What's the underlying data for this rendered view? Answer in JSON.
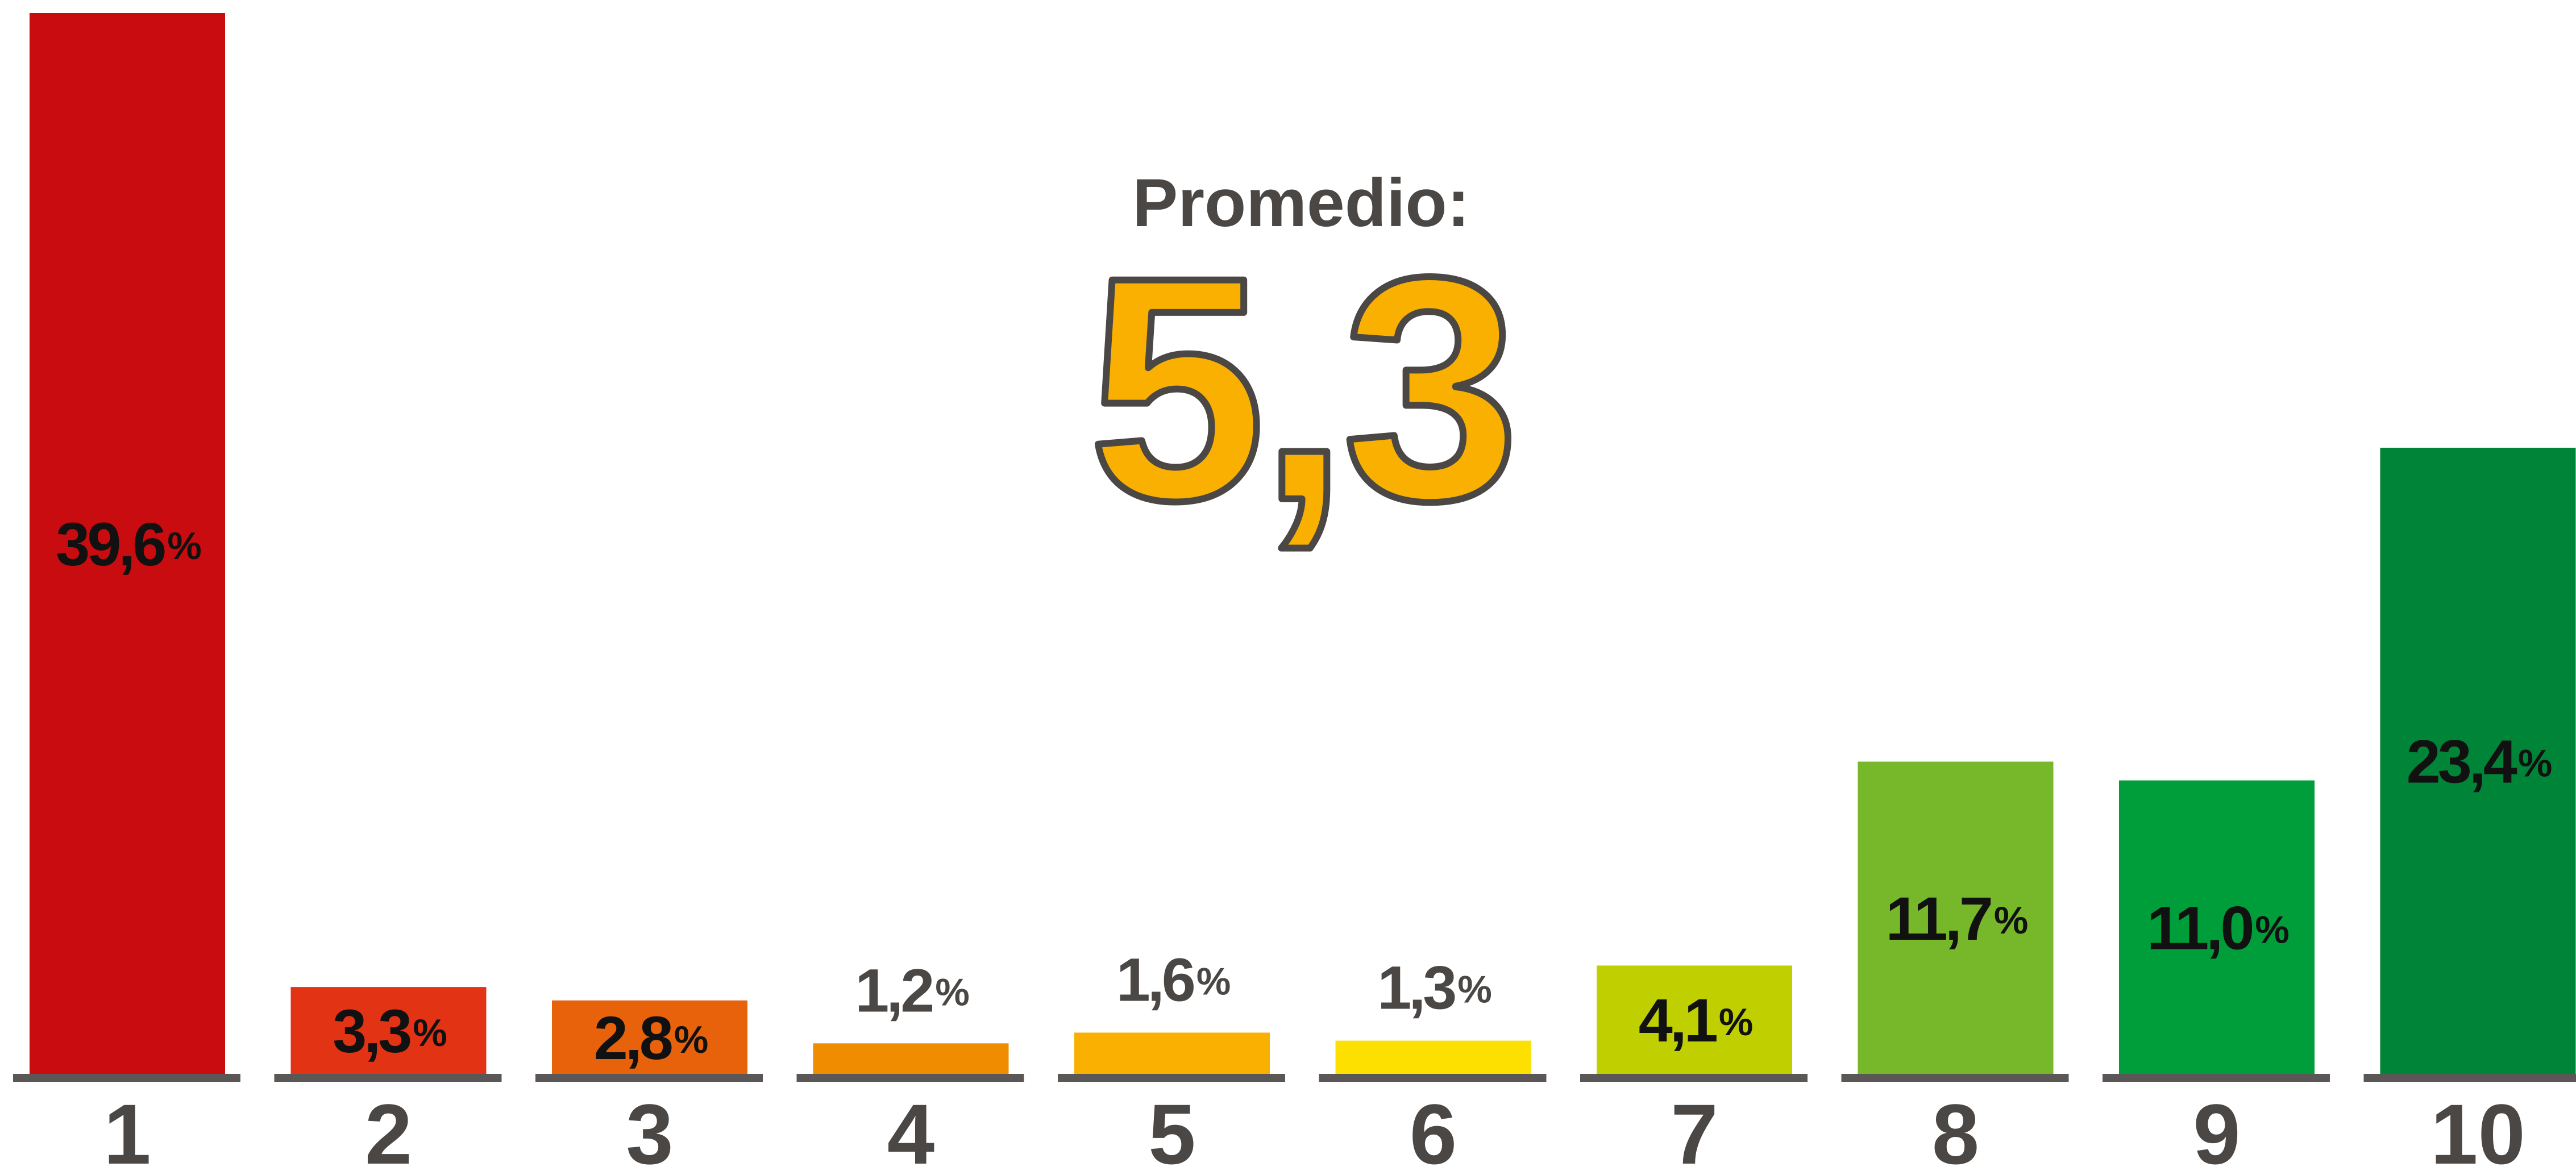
{
  "chart_data": {
    "type": "bar",
    "average_label": "Promedio:",
    "average": "5,3",
    "categories": [
      "1",
      "2",
      "3",
      "4",
      "5",
      "6",
      "7",
      "8",
      "9",
      "10"
    ],
    "values": [
      39.6,
      3.3,
      2.8,
      1.2,
      1.6,
      1.3,
      4.1,
      11.7,
      11.0,
      23.4
    ],
    "value_labels": [
      "39,6%",
      "3,3%",
      "2,8%",
      "1,2%",
      "1,6%",
      "1,3%",
      "4,1%",
      "11,7%",
      "11,0%",
      "23,4%"
    ],
    "colors": [
      "#c80c0f",
      "#e23314",
      "#e8620c",
      "#ef8c00",
      "#f9b000",
      "#fde000",
      "#bfcf00",
      "#76b82a",
      "#009d3b",
      "#008437"
    ]
  }
}
